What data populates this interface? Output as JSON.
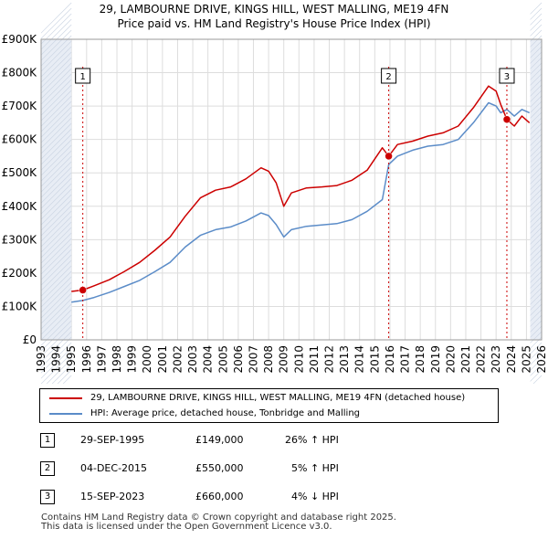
{
  "chart_data": {
    "type": "line",
    "title": "29, LAMBOURNE DRIVE, KINGS HILL, WEST MALLING, ME19 4FN",
    "subtitle": "Price paid vs. HM Land Registry's House Price Index (HPI)",
    "xlim": [
      1993,
      2026
    ],
    "ylim": [
      0,
      900000
    ],
    "x_ticks": [
      "1993",
      "1994",
      "1995",
      "1996",
      "1997",
      "1998",
      "1999",
      "2000",
      "2001",
      "2002",
      "2003",
      "2004",
      "2005",
      "2006",
      "2007",
      "2008",
      "2009",
      "2010",
      "2011",
      "2012",
      "2013",
      "2014",
      "2015",
      "2016",
      "2017",
      "2018",
      "2019",
      "2020",
      "2021",
      "2022",
      "2023",
      "2024",
      "2025",
      "2026"
    ],
    "y_ticks": [
      {
        "value": 0,
        "label": "£0"
      },
      {
        "value": 100000,
        "label": "£100K"
      },
      {
        "value": 200000,
        "label": "£200K"
      },
      {
        "value": 300000,
        "label": "£300K"
      },
      {
        "value": 400000,
        "label": "£400K"
      },
      {
        "value": 500000,
        "label": "£500K"
      },
      {
        "value": 600000,
        "label": "£600K"
      },
      {
        "value": 700000,
        "label": "£700K"
      },
      {
        "value": 800000,
        "label": "£800K"
      },
      {
        "value": 900000,
        "label": "£900K"
      }
    ],
    "shaded_before": 1995.0,
    "shaded_after": 2025.25,
    "series": [
      {
        "name": "29, LAMBOURNE DRIVE, KINGS HILL, WEST MALLING, ME19 4FN (detached house)",
        "color": "#cc0000",
        "x": [
          1995.0,
          1995.75,
          1996.5,
          1997.5,
          1998.5,
          1999.5,
          2000.5,
          2001.5,
          2002.5,
          2003.5,
          2004.5,
          2005.5,
          2006.5,
          2007.5,
          2008.0,
          2008.5,
          2009.0,
          2009.5,
          2010.5,
          2011.5,
          2012.5,
          2013.5,
          2014.5,
          2015.5,
          2015.92,
          2016.5,
          2017.5,
          2018.5,
          2019.5,
          2020.5,
          2021.5,
          2022.5,
          2023.0,
          2023.3,
          2023.71,
          2024.2,
          2024.7,
          2025.2
        ],
        "y": [
          145000,
          149000,
          162000,
          180000,
          205000,
          232000,
          268000,
          308000,
          370000,
          425000,
          448000,
          458000,
          482000,
          515000,
          505000,
          470000,
          400000,
          440000,
          455000,
          458000,
          462000,
          478000,
          508000,
          575000,
          550000,
          585000,
          595000,
          610000,
          620000,
          640000,
          695000,
          760000,
          745000,
          705000,
          660000,
          640000,
          670000,
          650000
        ]
      },
      {
        "name": "HPI: Average price, detached house, Tonbridge and Malling",
        "color": "#5b8cc8",
        "x": [
          1995.0,
          1995.75,
          1996.5,
          1997.5,
          1998.5,
          1999.5,
          2000.5,
          2001.5,
          2002.5,
          2003.5,
          2004.5,
          2005.5,
          2006.5,
          2007.5,
          2008.0,
          2008.5,
          2009.0,
          2009.5,
          2010.5,
          2011.5,
          2012.5,
          2013.5,
          2014.5,
          2015.5,
          2015.92,
          2016.5,
          2017.5,
          2018.5,
          2019.5,
          2020.5,
          2021.5,
          2022.5,
          2023.0,
          2023.3,
          2023.71,
          2024.2,
          2024.7,
          2025.2
        ],
        "y": [
          113000,
          118000,
          127000,
          142000,
          160000,
          178000,
          204000,
          232000,
          278000,
          313000,
          330000,
          338000,
          356000,
          380000,
          372000,
          345000,
          308000,
          330000,
          340000,
          344000,
          348000,
          360000,
          385000,
          420000,
          525000,
          550000,
          568000,
          580000,
          585000,
          600000,
          650000,
          710000,
          700000,
          680000,
          690000,
          670000,
          690000,
          680000
        ]
      }
    ],
    "sales_markers": [
      {
        "label": "1",
        "x": 1995.75,
        "y": 149000
      },
      {
        "label": "2",
        "x": 2015.92,
        "y": 550000
      },
      {
        "label": "3",
        "x": 2023.71,
        "y": 660000
      }
    ]
  },
  "legend": {
    "property_label": "29, LAMBOURNE DRIVE, KINGS HILL, WEST MALLING, ME19 4FN (detached house)",
    "hpi_label": "HPI: Average price, detached house, Tonbridge and Malling",
    "property_color": "#cc0000",
    "hpi_color": "#5b8cc8"
  },
  "sales": [
    {
      "num": "1",
      "date": "29-SEP-1995",
      "price": "£149,000",
      "hpi": "26% ↑ HPI"
    },
    {
      "num": "2",
      "date": "04-DEC-2015",
      "price": "£550,000",
      "hpi": "5% ↑ HPI"
    },
    {
      "num": "3",
      "date": "15-SEP-2023",
      "price": "£660,000",
      "hpi": "4% ↓ HPI"
    }
  ],
  "footer": {
    "line1": "Contains HM Land Registry data © Crown copyright and database right 2025.",
    "line2": "This data is licensed under the Open Government Licence v3.0."
  }
}
